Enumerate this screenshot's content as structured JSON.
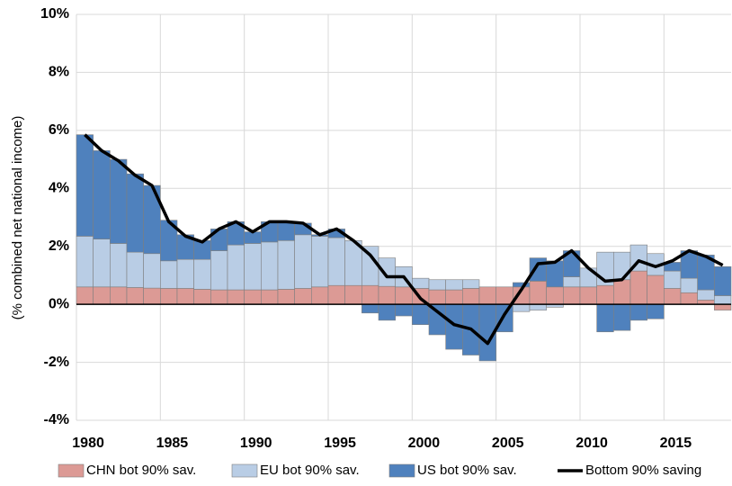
{
  "chart_data": {
    "type": "bar",
    "y_label": "(% combined net national income)",
    "categories": [
      "1980",
      null,
      null,
      null,
      null,
      "1985",
      null,
      null,
      null,
      null,
      "1990",
      null,
      null,
      null,
      null,
      "1995",
      null,
      null,
      null,
      null,
      "2000",
      null,
      null,
      null,
      null,
      "2005",
      null,
      null,
      null,
      null,
      "2010",
      null,
      null,
      null,
      null,
      "2015",
      null,
      null,
      null
    ],
    "series": [
      {
        "name": "CHN bot 90% sav.",
        "color": "#dc9a95",
        "values": [
          0.6,
          0.6,
          0.6,
          0.58,
          0.56,
          0.55,
          0.55,
          0.52,
          0.5,
          0.5,
          0.5,
          0.5,
          0.52,
          0.55,
          0.6,
          0.65,
          0.65,
          0.65,
          0.62,
          0.6,
          0.55,
          0.5,
          0.5,
          0.55,
          0.6,
          0.6,
          0.6,
          0.8,
          0.6,
          0.6,
          0.6,
          0.65,
          0.85,
          1.15,
          1.0,
          0.55,
          0.4,
          0.15,
          -0.2
        ]
      },
      {
        "name": "EU bot 90% sav.",
        "color": "#b9cde5",
        "values": [
          1.75,
          1.65,
          1.5,
          1.22,
          1.19,
          0.95,
          1.0,
          1.03,
          1.35,
          1.55,
          1.6,
          1.65,
          1.68,
          1.85,
          1.75,
          1.65,
          1.55,
          1.35,
          0.98,
          0.7,
          0.35,
          0.35,
          0.35,
          0.3,
          0,
          0,
          -0.25,
          -0.2,
          -0.1,
          0.35,
          0.65,
          1.15,
          0.95,
          0.9,
          0.75,
          0.6,
          0.5,
          0.35,
          0.3
        ]
      },
      {
        "name": "US bot 90% sav.",
        "color": "#4f81bd",
        "values": [
          3.5,
          3.05,
          2.9,
          2.7,
          2.35,
          1.4,
          0.85,
          0.65,
          0.75,
          0.8,
          0.4,
          0.7,
          0.65,
          0.4,
          0.05,
          0.3,
          0,
          -0.3,
          -0.55,
          -0.4,
          -0.7,
          -1.05,
          -1.55,
          -1.75,
          -1.95,
          -0.95,
          0.15,
          0.8,
          0.9,
          0.9,
          0,
          -0.95,
          -0.9,
          -0.55,
          -0.5,
          0.3,
          0.95,
          1.2,
          1.0
        ]
      },
      {
        "name": "Bottom 90% saving",
        "type": "line",
        "color": "#000000",
        "values": [
          5.85,
          5.3,
          4.95,
          4.45,
          4.1,
          2.85,
          2.35,
          2.15,
          2.6,
          2.85,
          2.5,
          2.85,
          2.85,
          2.8,
          2.4,
          2.6,
          2.2,
          1.7,
          0.95,
          0.95,
          0.2,
          -0.25,
          -0.7,
          -0.85,
          -1.35,
          -0.35,
          0.5,
          1.4,
          1.45,
          1.85,
          1.25,
          0.8,
          0.85,
          1.5,
          1.3,
          1.5,
          1.85,
          1.65,
          1.35
        ]
      }
    ],
    "ylim": [
      -4,
      10
    ],
    "yticks": [
      {
        "value": -4,
        "label": "-4%"
      },
      {
        "value": -2,
        "label": "-2%"
      },
      {
        "value": 0,
        "label": "0%"
      },
      {
        "value": 2,
        "label": "2%"
      },
      {
        "value": 4,
        "label": "4%"
      },
      {
        "value": 6,
        "label": "6%"
      },
      {
        "value": 8,
        "label": "8%"
      },
      {
        "value": 10,
        "label": "10%"
      }
    ],
    "grid": true,
    "legend": "bottom"
  }
}
